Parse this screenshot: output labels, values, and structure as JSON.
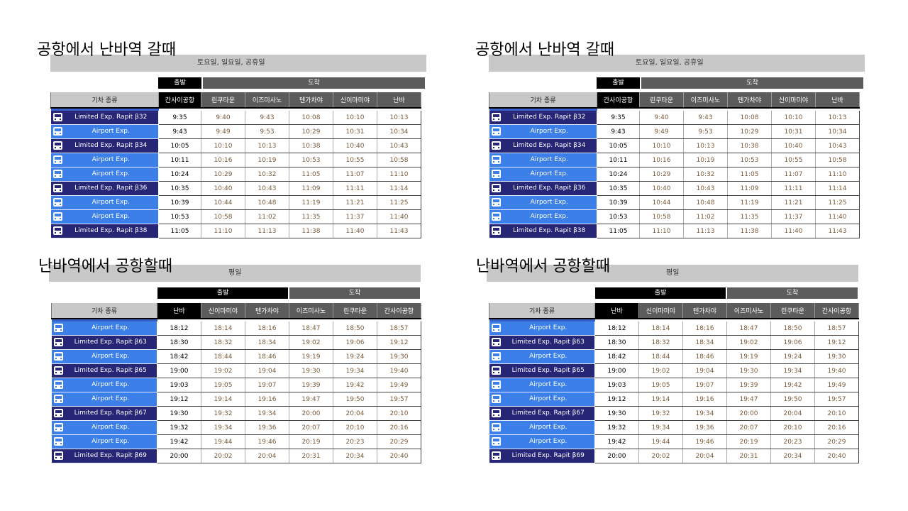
{
  "panels": [
    {
      "title": "공항에서 난바역 갈때",
      "day": "토요일, 일요일, 공휴일",
      "depart_label": "출발",
      "arrive_label": "도착",
      "col_train": "기차 종류",
      "stations": [
        "간사이공항",
        "린쿠타운",
        "이즈미사노",
        "텐가차야",
        "신이마미야",
        "난바"
      ],
      "rows": [
        {
          "type": "ltd",
          "icon": "train-icon",
          "train": "Limited Exp. Rapit β32",
          "times": [
            "9:35",
            "9:40",
            "9:43",
            "10:08",
            "10:10",
            "10:13"
          ]
        },
        {
          "type": "exp",
          "icon": "train-icon",
          "train": "Airport Exp.",
          "times": [
            "9:43",
            "9:49",
            "9:53",
            "10:29",
            "10:31",
            "10:34"
          ]
        },
        {
          "type": "ltd",
          "icon": "train-icon",
          "train": "Limited Exp. Rapit β34",
          "times": [
            "10:05",
            "10:10",
            "10:13",
            "10:38",
            "10:40",
            "10:43"
          ]
        },
        {
          "type": "exp",
          "icon": "train-icon",
          "train": "Airport Exp.",
          "times": [
            "10:11",
            "10:16",
            "10:19",
            "10:53",
            "10:55",
            "10:58"
          ]
        },
        {
          "type": "exp",
          "icon": "train-icon",
          "train": "Airport Exp.",
          "times": [
            "10:24",
            "10:29",
            "10:32",
            "11:05",
            "11:07",
            "11:10"
          ]
        },
        {
          "type": "ltd",
          "icon": "train-icon",
          "train": "Limited Exp. Rapit β36",
          "times": [
            "10:35",
            "10:40",
            "10:43",
            "11:09",
            "11:11",
            "11:14"
          ]
        },
        {
          "type": "exp",
          "icon": "train-icon",
          "train": "Airport Exp.",
          "times": [
            "10:39",
            "10:44",
            "10:48",
            "11:19",
            "11:21",
            "11:25"
          ]
        },
        {
          "type": "exp",
          "icon": "train-icon",
          "train": "Airport Exp.",
          "times": [
            "10:53",
            "10:58",
            "11:02",
            "11:35",
            "11:37",
            "11:40"
          ]
        },
        {
          "type": "ltd",
          "icon": "train-icon",
          "train": "Limited Exp. Rapit β38",
          "times": [
            "11:05",
            "11:10",
            "11:13",
            "11:38",
            "11:40",
            "11:43"
          ]
        }
      ]
    },
    {
      "title": "공항에서 난바역 갈때",
      "day": "토요일, 일요일, 공휴일",
      "depart_label": "출발",
      "arrive_label": "도착",
      "col_train": "기차 종류",
      "stations": [
        "간사이공항",
        "린쿠타운",
        "이즈미사노",
        "텐가차야",
        "신이마미야",
        "난바"
      ],
      "rows": [
        {
          "type": "ltd",
          "icon": "train-icon",
          "train": "Limited Exp. Rapit β32",
          "times": [
            "9:35",
            "9:40",
            "9:43",
            "10:08",
            "10:10",
            "10:13"
          ]
        },
        {
          "type": "exp",
          "icon": "train-icon",
          "train": "Airport Exp.",
          "times": [
            "9:43",
            "9:49",
            "9:53",
            "10:29",
            "10:31",
            "10:34"
          ]
        },
        {
          "type": "ltd",
          "icon": "train-icon",
          "train": "Limited Exp. Rapit β34",
          "times": [
            "10:05",
            "10:10",
            "10:13",
            "10:38",
            "10:40",
            "10:43"
          ]
        },
        {
          "type": "exp",
          "icon": "train-icon",
          "train": "Airport Exp.",
          "times": [
            "10:11",
            "10:16",
            "10:19",
            "10:53",
            "10:55",
            "10:58"
          ]
        },
        {
          "type": "exp",
          "icon": "train-icon",
          "train": "Airport Exp.",
          "times": [
            "10:24",
            "10:29",
            "10:32",
            "11:05",
            "11:07",
            "11:10"
          ]
        },
        {
          "type": "ltd",
          "icon": "train-icon",
          "train": "Limited Exp. Rapit β36",
          "times": [
            "10:35",
            "10:40",
            "10:43",
            "11:09",
            "11:11",
            "11:14"
          ]
        },
        {
          "type": "exp",
          "icon": "train-icon",
          "train": "Airport Exp.",
          "times": [
            "10:39",
            "10:44",
            "10:48",
            "11:19",
            "11:21",
            "11:25"
          ]
        },
        {
          "type": "exp",
          "icon": "train-icon",
          "train": "Airport Exp.",
          "times": [
            "10:53",
            "10:58",
            "11:02",
            "11:35",
            "11:37",
            "11:40"
          ]
        },
        {
          "type": "ltd",
          "icon": "train-icon",
          "train": "Limited Exp. Rapit β38",
          "times": [
            "11:05",
            "11:10",
            "11:13",
            "11:38",
            "11:40",
            "11:43"
          ]
        }
      ]
    },
    {
      "title": "난바역에서 공항할때",
      "day": "평일",
      "depart_label": "출발",
      "arrive_label": "도착",
      "col_train": "기차 종류",
      "stations": [
        "난바",
        "신이마미야",
        "텐가차야",
        "이즈미사노",
        "린쿠타운",
        "간사이공항"
      ],
      "rows": [
        {
          "type": "exp",
          "icon": "train-icon",
          "train": "Airport Exp.",
          "times": [
            "18:12",
            "18:14",
            "18:16",
            "18:47",
            "18:50",
            "18:57"
          ]
        },
        {
          "type": "ltd",
          "icon": "train-icon",
          "train": "Limited Exp. Rapit β63",
          "times": [
            "18:30",
            "18:32",
            "18:34",
            "19:02",
            "19:06",
            "19:12"
          ]
        },
        {
          "type": "exp",
          "icon": "train-icon",
          "train": "Airport Exp.",
          "times": [
            "18:42",
            "18:44",
            "18:46",
            "19:19",
            "19:24",
            "19:30"
          ]
        },
        {
          "type": "ltd",
          "icon": "train-icon",
          "train": "Limited Exp. Rapit β65",
          "times": [
            "19:00",
            "19:02",
            "19:04",
            "19:30",
            "19:34",
            "19:40"
          ]
        },
        {
          "type": "exp",
          "icon": "train-icon",
          "train": "Airport Exp.",
          "times": [
            "19:03",
            "19:05",
            "19:07",
            "19:39",
            "19:42",
            "19:49"
          ]
        },
        {
          "type": "exp",
          "icon": "train-icon",
          "train": "Airport Exp.",
          "times": [
            "19:12",
            "19:14",
            "19:16",
            "19:47",
            "19:50",
            "19:57"
          ]
        },
        {
          "type": "ltd",
          "icon": "train-icon",
          "train": "Limited Exp. Rapit β67",
          "times": [
            "19:30",
            "19:32",
            "19:34",
            "20:00",
            "20:04",
            "20:10"
          ]
        },
        {
          "type": "exp",
          "icon": "train-icon",
          "train": "Airport Exp.",
          "times": [
            "19:32",
            "19:34",
            "19:36",
            "20:07",
            "20:10",
            "20:16"
          ]
        },
        {
          "type": "exp",
          "icon": "train-icon",
          "train": "Airport Exp.",
          "times": [
            "19:42",
            "19:44",
            "19:46",
            "20:19",
            "20:23",
            "20:29"
          ]
        },
        {
          "type": "ltd",
          "icon": "train-icon",
          "train": "Limited Exp. Rapit β69",
          "times": [
            "20:00",
            "20:02",
            "20:04",
            "20:31",
            "20:34",
            "20:40"
          ]
        }
      ]
    },
    {
      "title": "난바역에서 공항할때",
      "day": "평일",
      "depart_label": "출발",
      "arrive_label": "도착",
      "col_train": "기차 종류",
      "stations": [
        "난바",
        "신이마미야",
        "텐가차야",
        "이즈미사노",
        "린쿠타운",
        "간사이공항"
      ],
      "rows": [
        {
          "type": "exp",
          "icon": "train-icon",
          "train": "Airport Exp.",
          "times": [
            "18:12",
            "18:14",
            "18:16",
            "18:47",
            "18:50",
            "18:57"
          ]
        },
        {
          "type": "ltd",
          "icon": "train-icon",
          "train": "Limited Exp. Rapit β63",
          "times": [
            "18:30",
            "18:32",
            "18:34",
            "19:02",
            "19:06",
            "19:12"
          ]
        },
        {
          "type": "exp",
          "icon": "train-icon",
          "train": "Airport Exp.",
          "times": [
            "18:42",
            "18:44",
            "18:46",
            "19:19",
            "19:24",
            "19:30"
          ]
        },
        {
          "type": "ltd",
          "icon": "train-icon",
          "train": "Limited Exp. Rapit β65",
          "times": [
            "19:00",
            "19:02",
            "19:04",
            "19:30",
            "19:34",
            "19:40"
          ]
        },
        {
          "type": "exp",
          "icon": "train-icon",
          "train": "Airport Exp.",
          "times": [
            "19:03",
            "19:05",
            "19:07",
            "19:39",
            "19:42",
            "19:49"
          ]
        },
        {
          "type": "exp",
          "icon": "train-icon",
          "train": "Airport Exp.",
          "times": [
            "19:12",
            "19:14",
            "19:16",
            "19:47",
            "19:50",
            "19:57"
          ]
        },
        {
          "type": "ltd",
          "icon": "train-icon",
          "train": "Limited Exp. Rapit β67",
          "times": [
            "19:30",
            "19:32",
            "19:34",
            "20:00",
            "20:04",
            "20:10"
          ]
        },
        {
          "type": "exp",
          "icon": "train-icon",
          "train": "Airport Exp.",
          "times": [
            "19:32",
            "19:34",
            "19:36",
            "20:07",
            "20:10",
            "20:16"
          ]
        },
        {
          "type": "exp",
          "icon": "train-icon",
          "train": "Airport Exp.",
          "times": [
            "19:42",
            "19:44",
            "19:46",
            "20:19",
            "20:23",
            "20:29"
          ]
        },
        {
          "type": "ltd",
          "icon": "train-icon",
          "train": "Limited Exp. Rapit β69",
          "times": [
            "20:00",
            "20:02",
            "20:04",
            "20:31",
            "20:34",
            "20:40"
          ]
        }
      ]
    }
  ]
}
